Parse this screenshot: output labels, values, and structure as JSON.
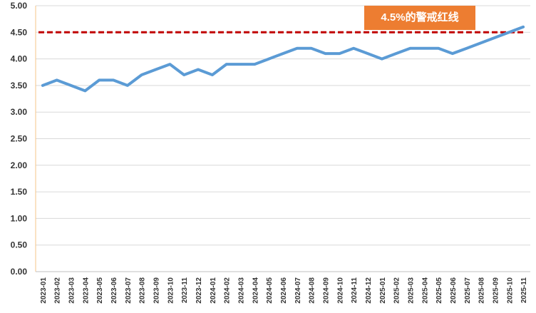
{
  "chart_data": {
    "type": "line",
    "title": "",
    "xlabel": "",
    "ylabel": "",
    "ylim": [
      0,
      5
    ],
    "yticks": [
      "0.00",
      "0.50",
      "1.00",
      "1.50",
      "2.00",
      "2.50",
      "3.00",
      "3.50",
      "4.00",
      "4.50",
      "5.00"
    ],
    "grid": true,
    "legend": "none",
    "categories": [
      "2023-01",
      "2023-02",
      "2023-03",
      "2023-04",
      "2023-05",
      "2023-06",
      "2023-07",
      "2023-08",
      "2023-09",
      "2023-10",
      "2023-11",
      "2023-12",
      "2024-01",
      "2024-02",
      "2024-03",
      "2024-04",
      "2024-05",
      "2024-06",
      "2024-07",
      "2024-08",
      "2024-09",
      "2024-10",
      "2024-11",
      "2024-12",
      "2025-01",
      "2025-02",
      "2025-03",
      "2025-04",
      "2025-05",
      "2025-06",
      "2025-07",
      "2025-08",
      "2025-09",
      "2025-10",
      "2025-11"
    ],
    "series": [
      {
        "values": [
          3.5,
          3.6,
          3.5,
          3.4,
          3.6,
          3.6,
          3.5,
          3.7,
          3.8,
          3.9,
          3.7,
          3.8,
          3.7,
          3.9,
          3.9,
          3.9,
          4.0,
          4.1,
          4.2,
          4.2,
          4.1,
          4.1,
          4.2,
          4.1,
          4.0,
          4.1,
          4.2,
          4.2,
          4.2,
          4.1,
          4.2,
          4.3,
          4.4,
          4.5,
          4.6
        ],
        "color": "#5b9bd5"
      }
    ],
    "reference_line": {
      "value": 4.5,
      "color": "#c00000",
      "style": "dashed"
    },
    "annotation": {
      "text": "4.5%的警戒红线",
      "background": "#ed7d31",
      "color": "#ffffff"
    }
  }
}
